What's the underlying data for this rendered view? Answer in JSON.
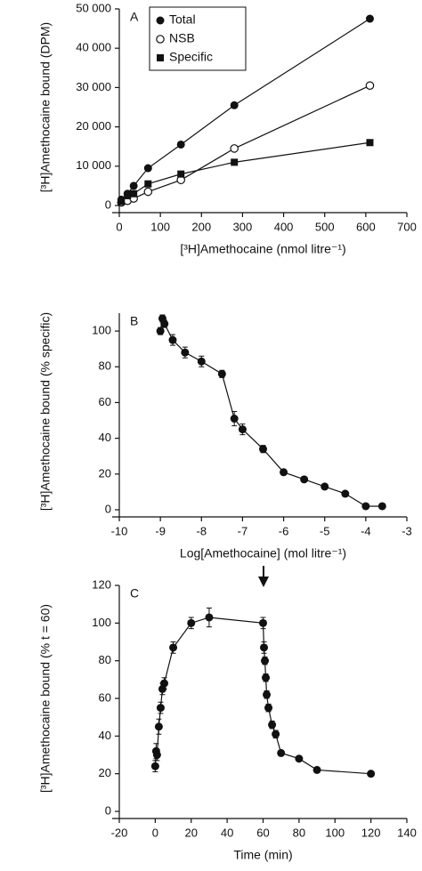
{
  "chart_data": [
    {
      "type": "line",
      "panel_label": "A",
      "title": null,
      "xlabel": "[³H]Amethocaine (nmol litre⁻¹)",
      "ylabel": "[³H]Amethocaine bound (DPM)",
      "x": [
        5,
        20,
        35,
        70,
        150,
        280,
        610
      ],
      "series": [
        {
          "name": "Total",
          "marker": "circle",
          "color": "#111111",
          "values": [
            1500,
            3000,
            5000,
            9500,
            15500,
            25500,
            47500
          ]
        },
        {
          "name": "NSB",
          "marker": "open-circle",
          "color": "#111111",
          "values": [
            800,
            1200,
            1800,
            3500,
            6500,
            14500,
            30500
          ]
        },
        {
          "name": "Specific",
          "marker": "square",
          "color": "#111111",
          "values": [
            1000,
            2500,
            3000,
            5500,
            8000,
            11000,
            16000
          ]
        }
      ],
      "xlim": [
        0,
        700
      ],
      "xticks": [
        0,
        100,
        200,
        300,
        400,
        500,
        600,
        700
      ],
      "ylim": [
        0,
        50000
      ],
      "yticks": [
        0,
        {
          "value": 10000,
          "label": "10 000"
        },
        {
          "value": 20000,
          "label": "20 000"
        },
        {
          "value": 30000,
          "label": "30 000"
        },
        {
          "value": 40000,
          "label": "40 000"
        },
        {
          "value": 50000,
          "label": "50 000"
        }
      ],
      "legend": "upper left"
    },
    {
      "type": "line",
      "panel_label": "B",
      "title": null,
      "xlabel": "Log[Amethocaine] (mol litre⁻¹)",
      "ylabel": "[³H]Amethocaine bound (% specific)",
      "x": [
        -9.0,
        -8.95,
        -8.9,
        -8.7,
        -8.4,
        -8.0,
        -7.5,
        -7.2,
        -7.0,
        -6.5,
        -6.0,
        -5.5,
        -5.0,
        -4.5,
        -4.0,
        -3.6
      ],
      "series": [
        {
          "name": null,
          "marker": "circle",
          "color": "#111111",
          "values": [
            100,
            107,
            104,
            95,
            88,
            83,
            76,
            51,
            45,
            34,
            21,
            17,
            13,
            9,
            2,
            2
          ],
          "errors": [
            2,
            2,
            2,
            3,
            3,
            3,
            2,
            4,
            3,
            2,
            1,
            1,
            1,
            1,
            1,
            1
          ]
        }
      ],
      "xlim": [
        -10,
        -3
      ],
      "xticks": [
        -10,
        -9,
        -8,
        -7,
        -6,
        -5,
        -4,
        -3
      ],
      "ylim": [
        0,
        110
      ],
      "yticks": [
        0,
        20,
        40,
        60,
        80,
        100
      ]
    },
    {
      "type": "line",
      "panel_label": "C",
      "title": null,
      "xlabel": "Time (min)",
      "ylabel": "[³H]Amethocaine bound (% t = 60)",
      "x": [
        0,
        0.5,
        1,
        2,
        3,
        4,
        5,
        10,
        20,
        30,
        60,
        60.5,
        61,
        61.5,
        62,
        63,
        65,
        67,
        70,
        80,
        90,
        120
      ],
      "series": [
        {
          "name": null,
          "marker": "circle",
          "color": "#111111",
          "values": [
            24,
            32,
            30,
            45,
            55,
            65,
            68,
            87,
            100,
            103,
            100,
            87,
            80,
            71,
            62,
            55,
            46,
            41,
            31,
            28,
            22,
            20
          ],
          "errors": [
            3,
            4,
            3,
            4,
            3,
            3,
            3,
            3,
            3,
            5,
            3,
            3,
            2,
            2,
            2,
            2,
            2,
            2,
            1,
            1,
            1,
            1
          ]
        }
      ],
      "xlim": [
        -20,
        140
      ],
      "xticks": [
        -20,
        0,
        20,
        40,
        60,
        80,
        100,
        120,
        140
      ],
      "ylim": [
        0,
        120
      ],
      "yticks": [
        0,
        20,
        40,
        60,
        80,
        100,
        120
      ]
    }
  ]
}
